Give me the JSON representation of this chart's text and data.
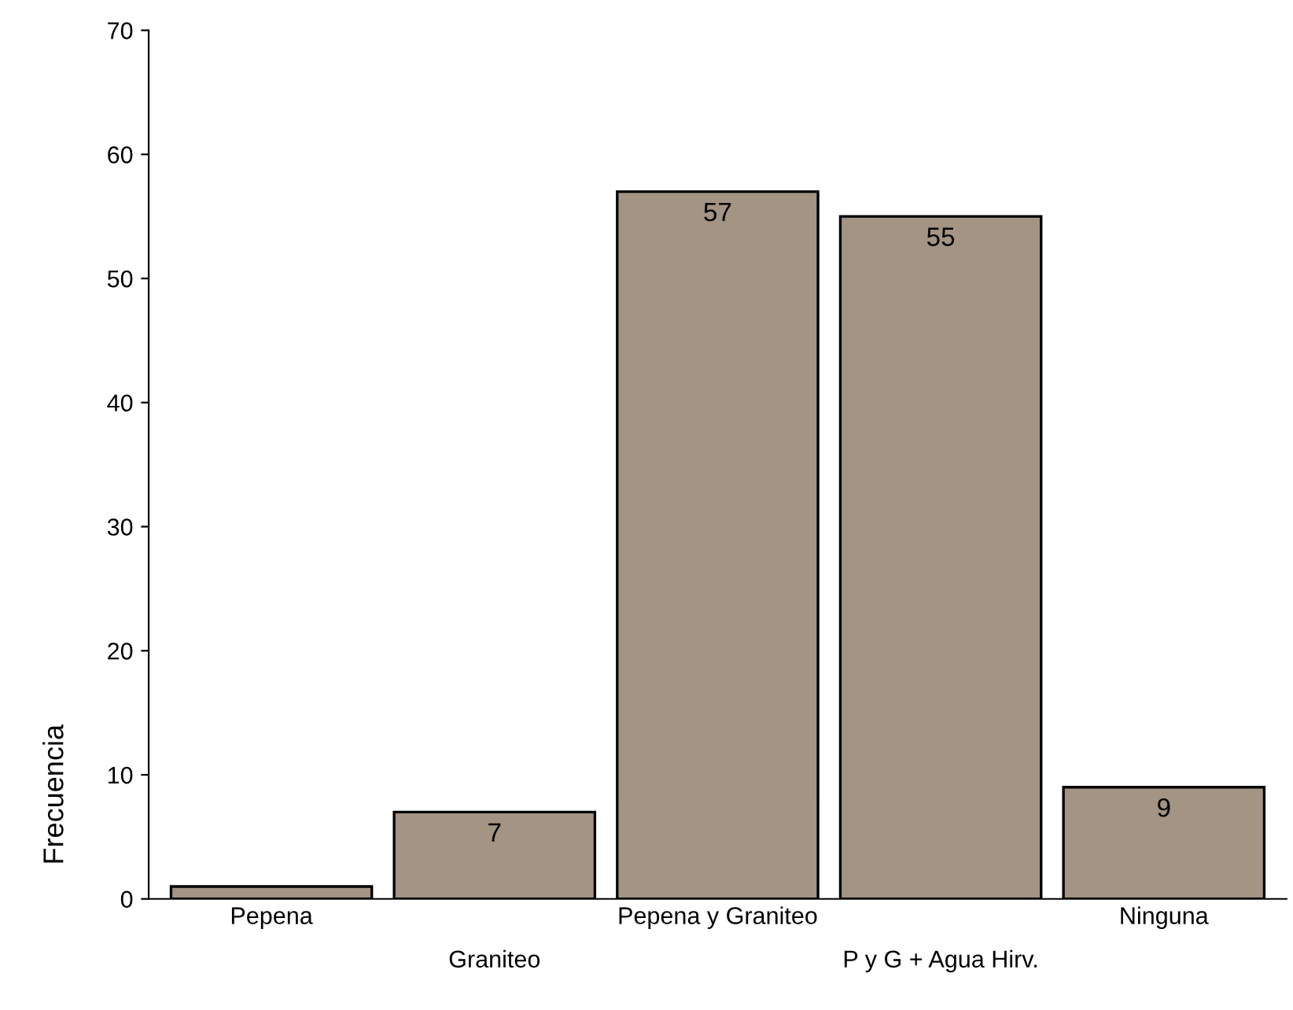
{
  "chart_data": {
    "type": "bar",
    "ylabel": "Frecuencia",
    "categories": [
      "Pepena",
      "Graniteo",
      "Pepena y Graniteo",
      "P y G + Agua Hirv.",
      "Ninguna"
    ],
    "values": [
      1,
      7,
      57,
      55,
      9
    ],
    "value_labels": [
      null,
      "7",
      "57",
      "55",
      "9"
    ],
    "color": "#a39483",
    "ylim": [
      0,
      70
    ],
    "yticks": [
      0,
      10,
      20,
      30,
      40,
      50,
      60,
      70
    ],
    "grid": false,
    "legend": false
  }
}
